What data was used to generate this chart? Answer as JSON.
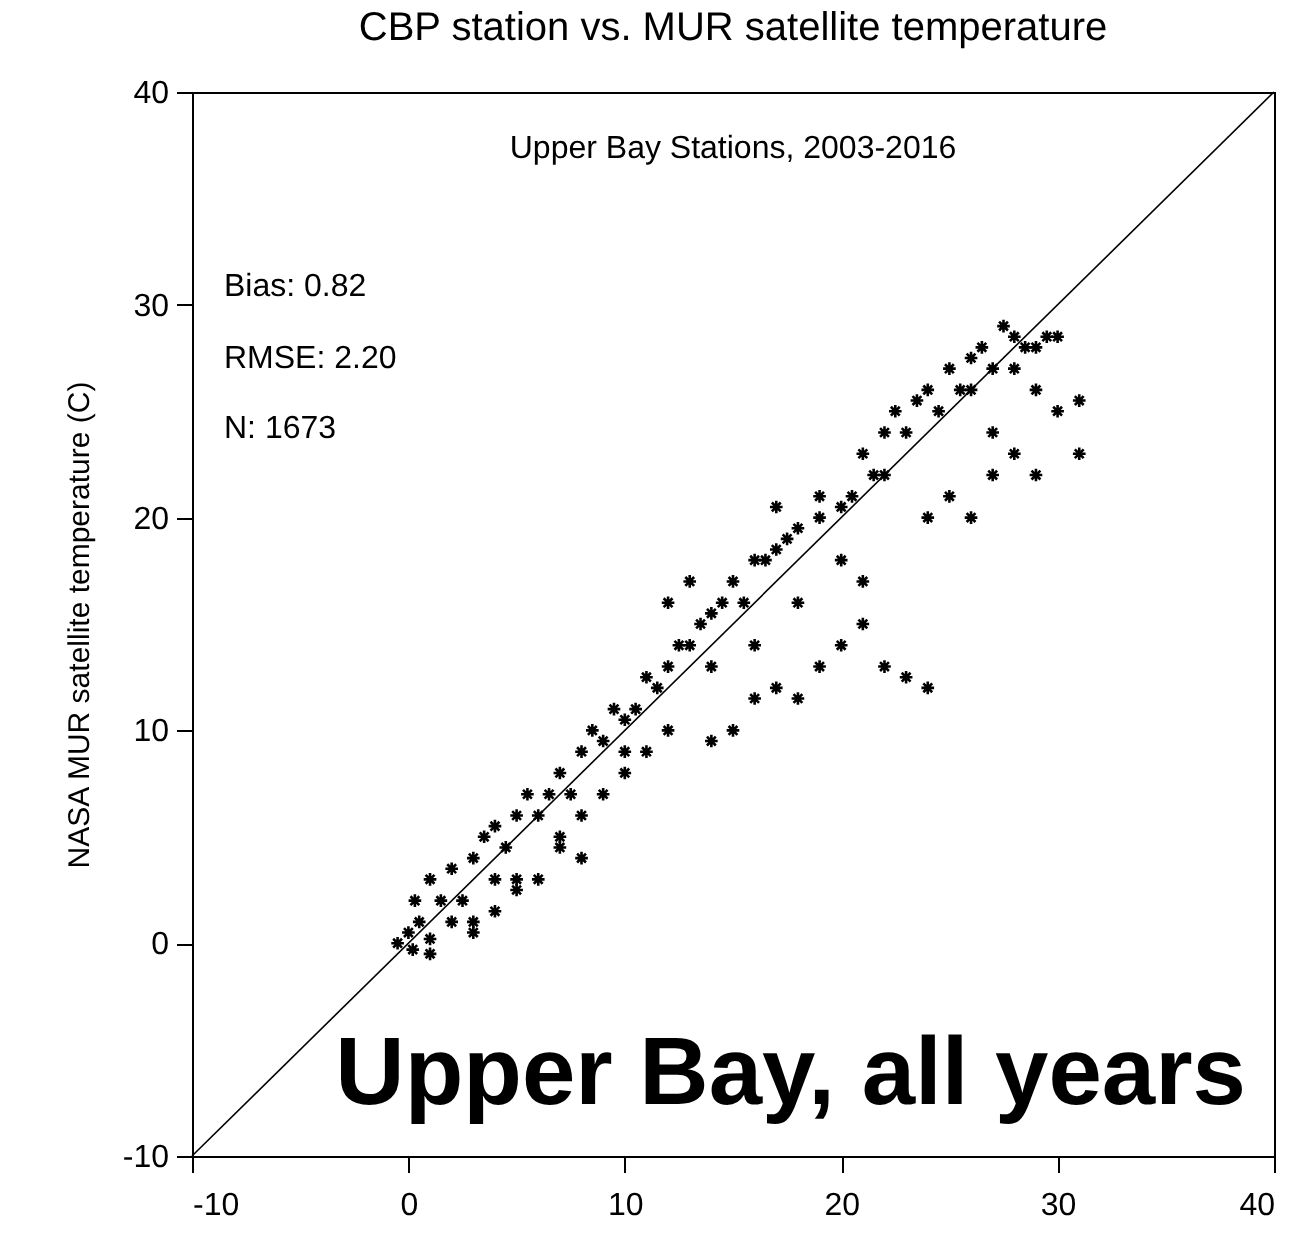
{
  "chart_data": {
    "type": "scatter",
    "title": "CBP station vs. MUR satellite temperature",
    "ylabel": "NASA MUR satellite temperature (C)",
    "annotations": [
      "Upper Bay Stations, 2003-2016",
      "Bias:  0.82",
      "RMSE:  2.20",
      "N:  1673",
      "Upper Bay, all years"
    ],
    "xlim": [
      -10,
      40
    ],
    "ylim": [
      -10,
      40
    ],
    "xticks": [
      -10,
      0,
      10,
      20,
      30,
      40
    ],
    "yticks": [
      -10,
      0,
      10,
      20,
      30,
      40
    ],
    "grid": false,
    "marker": "cross",
    "series": [
      {
        "color": "#000000",
        "x": [
          0,
          0.3,
          0.5,
          1,
          1,
          1.5,
          2,
          2,
          2.5,
          3,
          3,
          3.5,
          4,
          4,
          4.5,
          5,
          5,
          5.5,
          6,
          6.5,
          7,
          7.5,
          8,
          8.5,
          9,
          9.5,
          10,
          10.5,
          11,
          11.5,
          12,
          12.5,
          13,
          13.5,
          14,
          14.5,
          15,
          15.5,
          16,
          16.5,
          17,
          17.5,
          18,
          19,
          20,
          20.5,
          21,
          21.5,
          22,
          22.5,
          23,
          23.5,
          24,
          24.5,
          25,
          25.5,
          26,
          26.5,
          27,
          27.5,
          28,
          28.5,
          29,
          29.5,
          30,
          -0.5,
          0.2,
          4,
          5,
          6,
          7,
          8,
          9,
          10,
          11,
          12,
          14,
          15,
          16,
          17,
          18,
          19,
          20,
          21,
          22,
          23,
          24,
          18,
          16,
          12,
          13,
          19,
          20,
          21,
          24,
          25,
          26,
          27,
          28,
          29,
          30,
          31,
          31,
          29,
          27,
          14,
          10,
          7,
          3,
          1,
          8,
          22,
          17,
          26,
          28
        ],
        "values": [
          0.5,
          2,
          1,
          3,
          0.2,
          2,
          1,
          3.5,
          2,
          4,
          1,
          5,
          3,
          5.5,
          4.5,
          6,
          3,
          7,
          6,
          7,
          8,
          7,
          9,
          10,
          9.5,
          11,
          10.5,
          11,
          12.5,
          12,
          13,
          14,
          14,
          15,
          15.5,
          16,
          17,
          16,
          18,
          18,
          18.5,
          19,
          19.5,
          20,
          20.5,
          21,
          23,
          22,
          24,
          25,
          24,
          25.5,
          26,
          25,
          27,
          26,
          27.5,
          28,
          27,
          29,
          28.5,
          28,
          28,
          28.5,
          28.5,
          0,
          -0.3,
          1.5,
          2.5,
          3,
          4.5,
          6,
          7,
          8,
          9,
          10,
          9.5,
          10,
          11.5,
          12,
          11.5,
          13,
          14,
          15,
          13,
          12.5,
          12,
          16,
          14,
          16,
          17,
          21,
          18,
          17,
          20,
          21,
          20,
          22,
          23,
          26,
          25,
          25.5,
          23,
          22,
          24,
          13,
          9,
          5,
          0.5,
          -0.5,
          4,
          22,
          20.5,
          26,
          27
        ]
      },
      {
        "type": "line",
        "color": "#000000",
        "marker": "none",
        "line_style": "solid",
        "x": [
          -10,
          40
        ],
        "values": [
          -10,
          40
        ]
      }
    ]
  }
}
